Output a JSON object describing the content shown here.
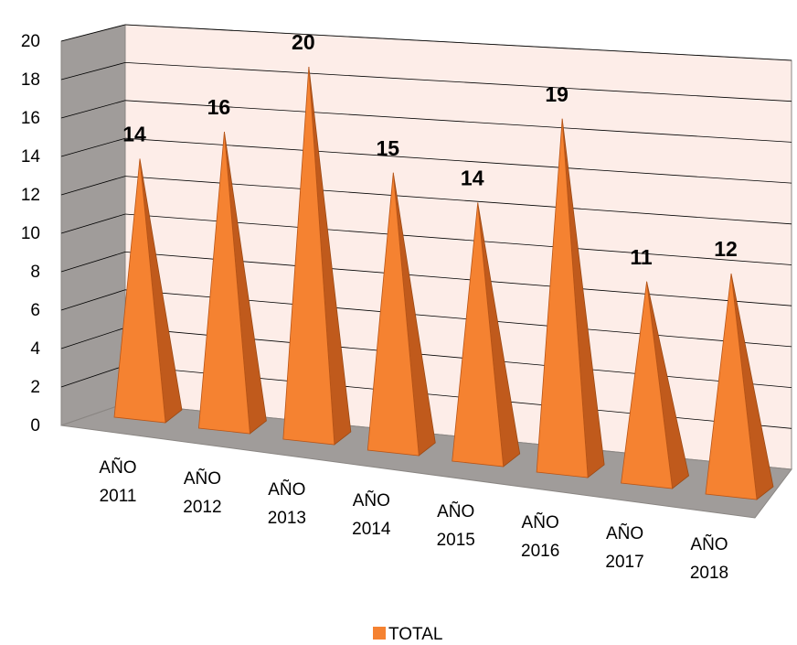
{
  "chart_data": {
    "type": "bar",
    "style": "3d-pyramid",
    "categories": [
      [
        "AÑO",
        "2011"
      ],
      [
        "AÑO",
        "2012"
      ],
      [
        "AÑO",
        "2013"
      ],
      [
        "AÑO",
        "2014"
      ],
      [
        "AÑO",
        "2015"
      ],
      [
        "AÑO",
        "2016"
      ],
      [
        "AÑO",
        "2017"
      ],
      [
        "AÑO",
        "2018"
      ]
    ],
    "series": [
      {
        "name": "TOTAL",
        "values": [
          14,
          16,
          20,
          15,
          14,
          19,
          11,
          12
        ],
        "color": "#F58231"
      }
    ],
    "data_labels": [
      "14",
      "16",
      "20",
      "15",
      "14",
      "19",
      "11",
      "12"
    ],
    "yticks": [
      "0",
      "2",
      "4",
      "6",
      "8",
      "10",
      "12",
      "14",
      "16",
      "18",
      "20"
    ],
    "ylim": [
      0,
      20
    ],
    "grid": true,
    "legend": "bottom",
    "colors": {
      "back_wall": "#FDEDE8",
      "side_wall": "#A09C9A",
      "floor": "#A09C9A",
      "grid": "#000000",
      "pyramid_front": "#F58231",
      "pyramid_side": "#C05A1C"
    }
  }
}
